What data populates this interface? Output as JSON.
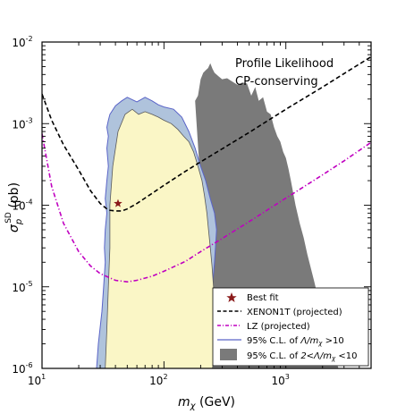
{
  "chart_data": {
    "type": "contour",
    "xscale": "log",
    "yscale": "log",
    "xlim": [
      10,
      5000
    ],
    "ylim": [
      1e-06,
      0.01
    ],
    "xlabel_base": "m",
    "xlabel_sub": "χ",
    "xlabel_unit": "(GeV)",
    "ylabel_base": "σ",
    "ylabel_sup": "SD",
    "ylabel_sub": "p",
    "ylabel_unit": "(pb)",
    "x_ticks": [
      {
        "value": 10,
        "base": "10",
        "exp": "1"
      },
      {
        "value": 100,
        "base": "10",
        "exp": "2"
      },
      {
        "value": 1000,
        "base": "10",
        "exp": "3"
      }
    ],
    "y_ticks": [
      {
        "value": 1e-06,
        "base": "10",
        "exp": "-6"
      },
      {
        "value": 1e-05,
        "base": "10",
        "exp": "-5"
      },
      {
        "value": 0.0001,
        "base": "10",
        "exp": "-4"
      },
      {
        "value": 0.001,
        "base": "10",
        "exp": "-3"
      },
      {
        "value": 0.01,
        "base": "10",
        "exp": "-2"
      }
    ],
    "annotations": [
      "Profile Likelihood",
      "CP-conserving"
    ],
    "best_fit": {
      "x": 42,
      "y": 0.000105
    },
    "series": [
      {
        "name": "XENON1T (projected)",
        "kind": "line",
        "style": "dashed",
        "color": "#000000",
        "x": [
          10,
          12,
          15,
          20,
          25,
          30,
          35,
          40,
          45,
          50,
          60,
          80,
          100,
          150,
          200,
          300,
          500,
          1000,
          2000,
          3000,
          5000
        ],
        "y": [
          0.0023,
          0.0011,
          0.00055,
          0.00027,
          0.00015,
          0.000105,
          8.7e-05,
          8.5e-05,
          8.5e-05,
          9e-05,
          0.000105,
          0.00014,
          0.000175,
          0.00026,
          0.00034,
          0.00049,
          0.00078,
          0.0015,
          0.0028,
          0.0041,
          0.0066
        ]
      },
      {
        "name": "LZ (projected)",
        "kind": "line",
        "style": "dashdot",
        "color": "#c000c0",
        "x": [
          10,
          12,
          15,
          20,
          25,
          30,
          40,
          50,
          60,
          80,
          100,
          150,
          200,
          300,
          500,
          1000,
          2000,
          3000,
          5000
        ],
        "y": [
          0.00075,
          0.00017,
          6e-05,
          2.7e-05,
          1.8e-05,
          1.45e-05,
          1.2e-05,
          1.15e-05,
          1.2e-05,
          1.35e-05,
          1.55e-05,
          2.05e-05,
          2.7e-05,
          3.9e-05,
          6.3e-05,
          0.000122,
          0.000235,
          0.00035,
          0.00059
        ]
      },
      {
        "name": "95% C.L. of Λ/m_χ >10",
        "kind": "region",
        "fill": "#afc3dc",
        "edge": "#5a64c8",
        "x": [
          28,
          29,
          31,
          32,
          33,
          32.5,
          33,
          34,
          33,
          34,
          35,
          34,
          35,
          34,
          35,
          36,
          40,
          45,
          50,
          60,
          70,
          80,
          90,
          100,
          120,
          140,
          160,
          180,
          200,
          220,
          240,
          260,
          270,
          260,
          250,
          240,
          230,
          220,
          200,
          180,
          165,
          150,
          130,
          110,
          90,
          70,
          55,
          45,
          40,
          36,
          35,
          34,
          36,
          34
        ],
        "y": [
          1e-06,
          2e-06,
          5e-06,
          1e-05,
          2e-05,
          3e-05,
          5e-05,
          8e-05,
          0.00012,
          0.0002,
          0.0003,
          0.0005,
          0.0007,
          0.0009,
          0.0011,
          0.0013,
          0.00165,
          0.0019,
          0.0021,
          0.00185,
          0.0021,
          0.0019,
          0.0017,
          0.0016,
          0.0015,
          0.0012,
          0.0008,
          0.0005,
          0.0003,
          0.0002,
          0.00012,
          8e-05,
          5e-05,
          2e-05,
          1e-05,
          5e-06,
          3e-06,
          1e-06,
          1e-06,
          1e-06,
          1e-06,
          1e-06,
          1e-06,
          1e-06,
          1e-06,
          1e-06,
          1e-06,
          1e-06,
          1e-06,
          1e-06,
          1e-06,
          1e-06,
          1e-06,
          1e-06
        ]
      },
      {
        "name": "95% C.L. of 2<Λ/m_χ <10",
        "kind": "region",
        "fill": "#7a7a7a",
        "x": [
          180,
          190,
          200,
          210,
          220,
          230,
          240,
          250,
          260,
          280,
          300,
          330,
          360,
          400,
          440,
          480,
          520,
          560,
          600,
          650,
          700,
          750,
          800,
          850,
          900,
          950,
          1000,
          1050,
          1100,
          1150,
          1200,
          1300,
          1400,
          1500,
          1700,
          1900,
          2100,
          2300,
          2600,
          2700,
          2300,
          2000,
          1800,
          1600,
          1400,
          1200,
          1000,
          800,
          600,
          450,
          350,
          280,
          250
        ],
        "y": [
          0.0019,
          0.0022,
          0.0035,
          0.0042,
          0.0045,
          0.0048,
          0.0055,
          0.0047,
          0.0042,
          0.0038,
          0.0035,
          0.0036,
          0.0033,
          0.003,
          0.0032,
          0.0031,
          0.0022,
          0.0028,
          0.0019,
          0.0021,
          0.0014,
          0.0013,
          0.0009,
          0.0007,
          0.0006,
          0.00045,
          0.00038,
          0.00028,
          0.0002,
          0.00014,
          0.0001,
          6e-05,
          4e-05,
          2.5e-05,
          1.2e-05,
          6e-06,
          3e-06,
          1.8e-06,
          1.2e-06,
          1e-06,
          1e-06,
          1e-06,
          1e-06,
          1e-06,
          1e-06,
          1e-06,
          1e-06,
          1e-06,
          1e-06,
          1e-06,
          1e-06,
          1e-06,
          1e-06
        ]
      }
    ],
    "inner_region": {
      "fill": "#faf6c6",
      "edge": "#5a5a5a",
      "x": [
        33,
        34,
        35,
        36,
        36,
        38,
        42,
        48,
        55,
        62,
        70,
        80,
        90,
        100,
        115,
        130,
        145,
        160,
        175,
        190,
        205,
        215,
        225,
        232,
        240,
        248,
        255,
        262,
        268,
        265,
        262,
        255,
        250
      ],
      "y": [
        1e-06,
        3e-06,
        1e-05,
        3e-05,
        0.0001,
        0.0003,
        0.0008,
        0.0013,
        0.0015,
        0.0013,
        0.0014,
        0.0013,
        0.0012,
        0.0011,
        0.001,
        0.00085,
        0.0007,
        0.0006,
        0.00045,
        0.0003,
        0.0002,
        0.00013,
        8e-05,
        5e-05,
        3e-05,
        1.8e-05,
        1e-05,
        6e-06,
        3e-06,
        2e-06,
        1.5e-06,
        1.2e-06,
        1e-06
      ]
    },
    "legend": {
      "placement": "lower-right",
      "entries": [
        {
          "marker": "star",
          "label": "Best fit"
        },
        {
          "marker": "dashed",
          "label": "XENON1T (projected)"
        },
        {
          "marker": "dashdot",
          "label": "LZ (projected)"
        },
        {
          "marker": "blue-line",
          "label_pre": "95% C.L. of ",
          "label_math": "Λ/m",
          "label_sub": "χ",
          "label_post": " >10"
        },
        {
          "marker": "gray-box",
          "label_pre": "95% C.L. of ",
          "label_math": "2<Λ/m",
          "label_sub": "χ",
          "label_post": " <10"
        }
      ]
    },
    "colors": {
      "best_fit": "#8b1a1a",
      "gray_region": "#7a7a7a",
      "blue_region": "#afc3dc",
      "yellow_region": "#faf6c6"
    }
  }
}
